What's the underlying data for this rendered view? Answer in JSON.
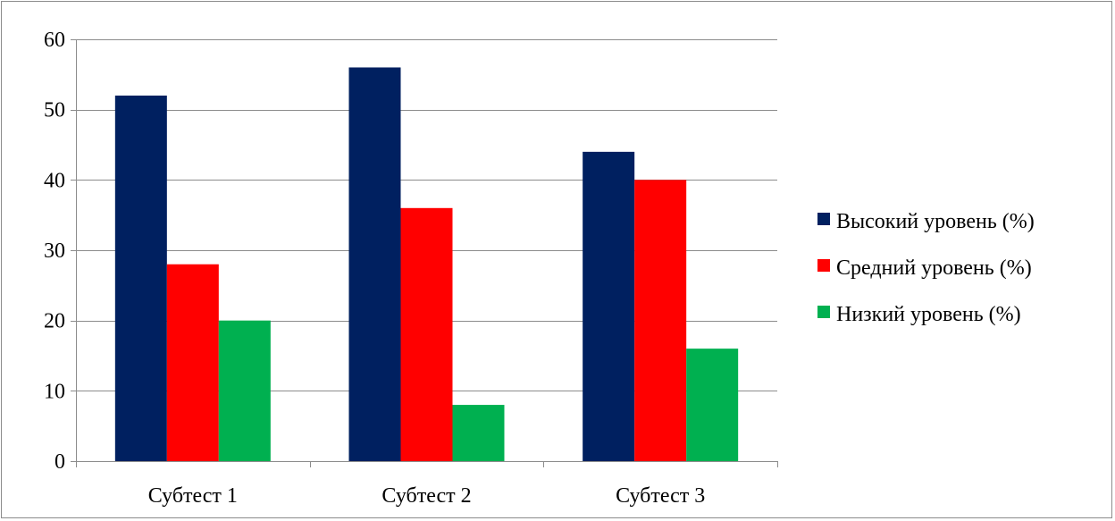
{
  "chart_data": {
    "type": "bar",
    "categories": [
      "Субтест 1",
      "Субтест 2",
      "Субтест 3"
    ],
    "series": [
      {
        "name": "Высокий уровень (%)",
        "values": [
          52,
          56,
          44
        ],
        "color": "#002060"
      },
      {
        "name": "Средний уровень (%)",
        "values": [
          28,
          36,
          40
        ],
        "color": "#ff0000"
      },
      {
        "name": "Низкий уровень (%)",
        "values": [
          20,
          8,
          16
        ],
        "color": "#00b050"
      }
    ],
    "title": "",
    "xlabel": "",
    "ylabel": "",
    "ylim": [
      0,
      60
    ],
    "yticks": [
      0,
      10,
      20,
      30,
      40,
      50,
      60
    ],
    "grid": true,
    "legend": "right"
  }
}
